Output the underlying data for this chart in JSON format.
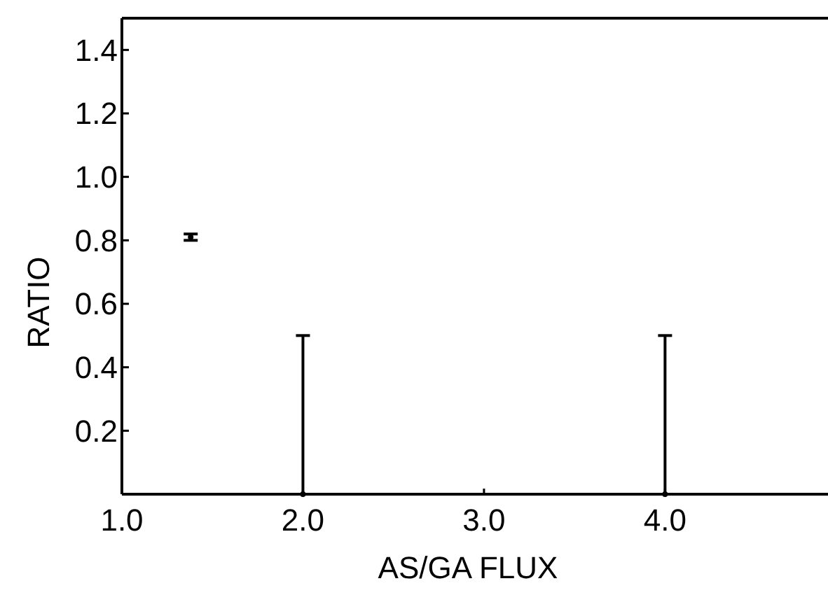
{
  "chart_data": {
    "type": "scatter",
    "xlabel": "AS/GA FLUX",
    "ylabel": "RATIO",
    "xlim": [
      1.0,
      4.9
    ],
    "xticks": [
      {
        "value": 1,
        "label": "1.0"
      },
      {
        "value": 2,
        "label": "2.0"
      },
      {
        "value": 3,
        "label": "3.0"
      },
      {
        "value": 4,
        "label": "4.0"
      }
    ],
    "ylim": [
      0,
      1.5
    ],
    "yticks": [
      0.2,
      0.4,
      0.6,
      0.8,
      {
        "value": 1,
        "label": "1.0"
      },
      1.2,
      1.4
    ],
    "marker": "circle",
    "grid": false,
    "series": [
      {
        "color": "#000000",
        "x": [
          1.38,
          2.0,
          4.0
        ],
        "values": [
          0.81,
          0,
          0
        ],
        "errors": [
          [
            0.8,
            0.82
          ],
          [
            0,
            0.5
          ],
          [
            0,
            0.5
          ]
        ]
      }
    ]
  }
}
